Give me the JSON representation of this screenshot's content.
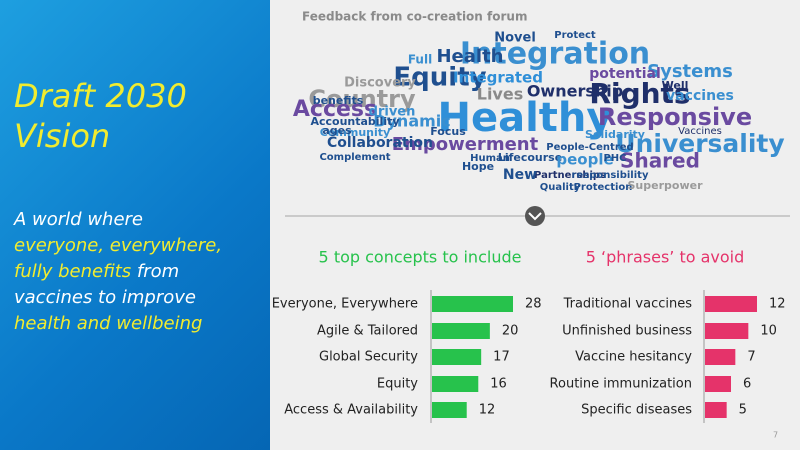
{
  "slide_title": "Draft 2030 Vision",
  "vision_statement": [
    "A world where",
    "everyone, everywhere,",
    "fully benefits",
    "from",
    "vaccines to improve",
    "health and wellbeing"
  ],
  "word_cloud": {
    "title": "Feedback from co-creation forum",
    "words": [
      "Healthy",
      "Integration",
      "Equity",
      "Rights",
      "Responsive",
      "Universality",
      "Country",
      "Access",
      "Health",
      "Integrated",
      "Ownership",
      "Systems",
      "Empowerment",
      "Shared",
      "Dynamic",
      "Lives",
      "potential",
      "vaccines",
      "Collaboration",
      "Accountability",
      "Lifecourse",
      "people",
      "Partnerships",
      "Quality",
      "Protection",
      "New",
      "Human",
      "Hope",
      "Superpower",
      "Well",
      "Novel",
      "Protect",
      "Discovery",
      "benefits",
      "driven",
      "Community",
      "Focus",
      "responsibility",
      "Solidarity",
      "People-Centred",
      "PHC",
      "Vaccines",
      "Complement",
      "Full",
      "ages"
    ]
  },
  "chart_data": [
    {
      "type": "bar",
      "orientation": "horizontal",
      "title": "5 top concepts to include",
      "categories": [
        "Everyone, Everywhere",
        "Agile & Tailored",
        "Global Security",
        "Equity",
        "Access & Availability"
      ],
      "values": [
        28,
        20,
        17,
        16,
        12
      ],
      "color": "#27c24c",
      "title_color": "#27c24c",
      "xlim": [
        0,
        28
      ]
    },
    {
      "type": "bar",
      "orientation": "horizontal",
      "title": "5 ‘phrases’ to avoid",
      "categories": [
        "Traditional vaccines",
        "Unfinished business",
        "Vaccine hesitancy",
        "Routine immunization",
        "Specific diseases"
      ],
      "values": [
        12,
        10,
        7,
        6,
        5
      ],
      "color": "#e5336a",
      "title_color": "#e5336a",
      "xlim": [
        0,
        12
      ]
    }
  ],
  "page_number": "7"
}
